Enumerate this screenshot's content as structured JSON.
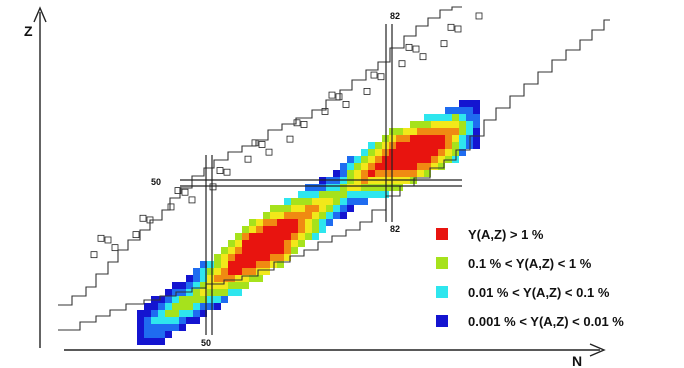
{
  "chart_data": {
    "type": "heatmap",
    "title": "",
    "xlabel": "N",
    "ylabel": "Z",
    "magic_numbers": {
      "N": [
        "50",
        "82"
      ],
      "Z": [
        "50",
        "82"
      ]
    },
    "legend": [
      {
        "label": "Y(A,Z) > 1 %",
        "color": "#e8140f",
        "level": 3
      },
      {
        "label": "0.1 % < Y(A,Z) < 1 %",
        "color": "#a6e21c",
        "level": 2
      },
      {
        "label": "0.01 % < Y(A,Z) < 0.1 %",
        "color": "#2ee6ee",
        "level": 1
      },
      {
        "label": "0.001 % < Y(A,Z) < 0.01 %",
        "color": "#1414d0",
        "level": 0
      }
    ],
    "band_colors": [
      "#1414d0",
      "#1f6cf0",
      "#2ee6ee",
      "#a6e21c",
      "#f2e81a",
      "#f08a12",
      "#e8140f"
    ],
    "legend_position": "bottom-right",
    "grid": false
  }
}
